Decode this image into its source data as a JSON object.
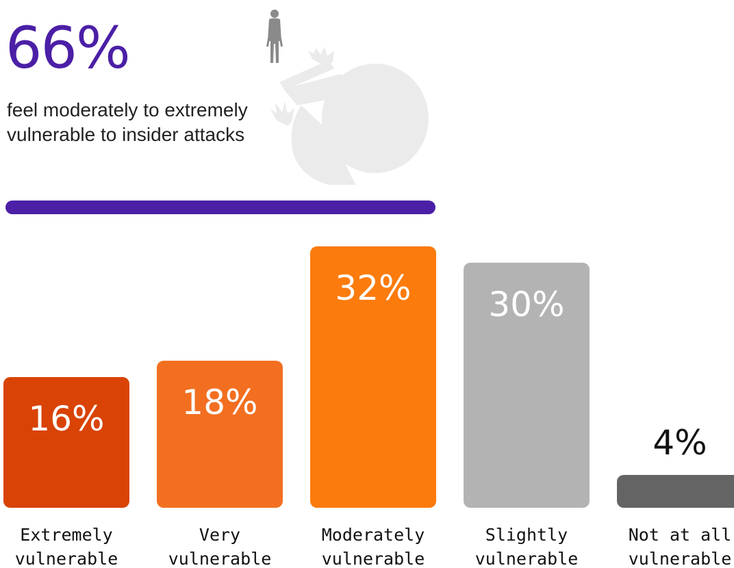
{
  "headline": {
    "value": "66%",
    "text": "feel moderately to extremely vulnerable to insider attacks"
  },
  "colors": {
    "headline": "#4b1fa6",
    "divider": "#4b1fa6",
    "illustration": "#ebebeb",
    "figure": "#8a8a8a"
  },
  "chart_data": {
    "type": "bar",
    "title": "",
    "xlabel": "",
    "ylabel": "",
    "grid": false,
    "legend": "none",
    "ylim": [
      0,
      32
    ],
    "categories": [
      [
        "Extremely",
        "vulnerable"
      ],
      [
        "Very",
        "vulnerable"
      ],
      [
        "Moderately",
        "vulnerable"
      ],
      [
        "Slightly",
        "vulnerable"
      ],
      [
        "Not at all",
        "vulnerable"
      ]
    ],
    "values": [
      16,
      18,
      32,
      30,
      4
    ],
    "value_labels": [
      "16%",
      "18%",
      "32%",
      "30%",
      "4%"
    ],
    "bar_colors": [
      "#d94305",
      "#f26f21",
      "#fb7b0d",
      "#b3b3b3",
      "#646464"
    ]
  }
}
